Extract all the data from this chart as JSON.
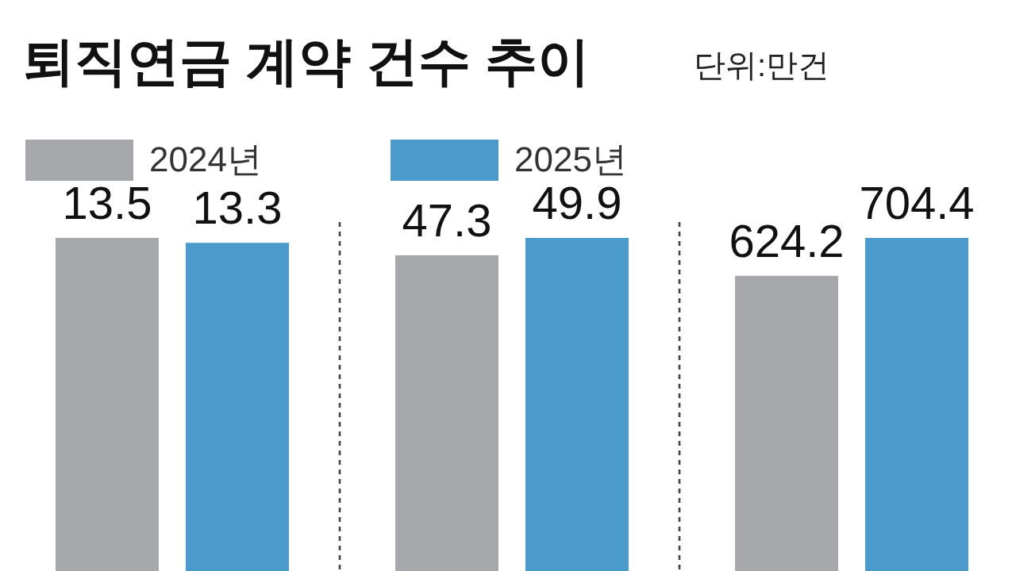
{
  "chart_data": [
    {
      "type": "bar",
      "title": "퇴직연금 계약 건수 추이",
      "annotations": [
        "단위:만건"
      ],
      "legend": "top",
      "categories": [
        null
      ],
      "series": [
        {
          "name": "2024년",
          "color": "#a7a8ac",
          "values": [
            13.5
          ]
        },
        {
          "name": "2025년",
          "color": "#4a9acb",
          "values": [
            13.3
          ]
        }
      ],
      "tick_labels": false,
      "data_labels": true
    },
    {
      "type": "bar",
      "categories": [
        null
      ],
      "series": [
        {
          "color": "#a7a8ac",
          "values": [
            47.3
          ]
        },
        {
          "color": "#4a9acb",
          "values": [
            49.9
          ]
        }
      ],
      "tick_labels": false,
      "data_labels": true
    },
    {
      "type": "bar",
      "categories": [
        null
      ],
      "series": [
        {
          "color": "#a7a8ac",
          "values": [
            624.2
          ]
        },
        {
          "color": "#4a9acb",
          "values": [
            704.4
          ]
        }
      ],
      "tick_labels": false,
      "data_labels": true
    }
  ]
}
